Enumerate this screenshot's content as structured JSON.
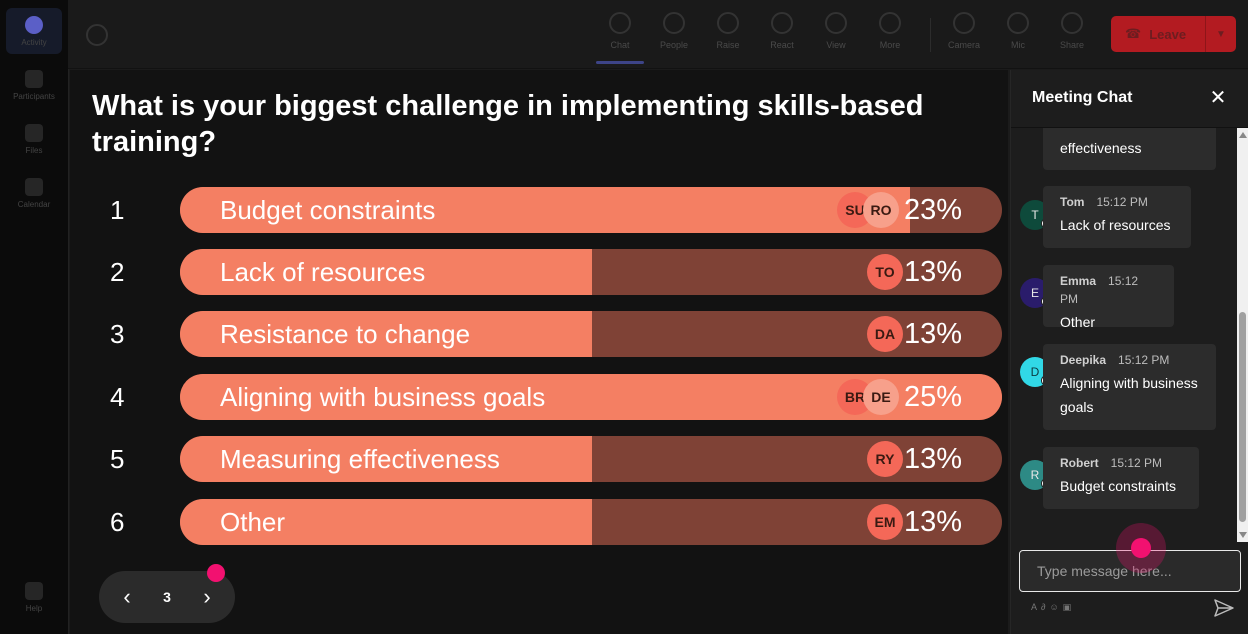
{
  "rail": {
    "items": [
      "Activity",
      "Participants",
      "Files",
      "Calendar",
      "Help"
    ]
  },
  "topbar": {
    "buttons": [
      "Chat",
      "People",
      "Raise",
      "React",
      "View",
      "More",
      "Camera",
      "Mic",
      "Share"
    ],
    "leave_label": "Leave"
  },
  "poll": {
    "question": "What is your biggest challenge in implementing skills-based training?",
    "options": [
      {
        "num": "1",
        "label": "Budget constraints",
        "percent": "23%",
        "fill_pct": 23,
        "avatars": [
          "SU",
          "RO"
        ]
      },
      {
        "num": "2",
        "label": "Lack of resources",
        "percent": "13%",
        "fill_pct": 13,
        "avatars": [
          "TO"
        ]
      },
      {
        "num": "3",
        "label": "Resistance to change",
        "percent": "13%",
        "fill_pct": 13,
        "avatars": [
          "DA"
        ]
      },
      {
        "num": "4",
        "label": "Aligning with business goals",
        "percent": "25%",
        "fill_pct": 25,
        "avatars": [
          "BR",
          "DE"
        ]
      },
      {
        "num": "5",
        "label": "Measuring effectiveness",
        "percent": "13%",
        "fill_pct": 13,
        "avatars": [
          "RY"
        ]
      },
      {
        "num": "6",
        "label": "Other",
        "percent": "13%",
        "fill_pct": 13,
        "avatars": [
          "EM"
        ]
      }
    ]
  },
  "pager": {
    "page": "3",
    "prev_glyph": "‹",
    "next_glyph": "›"
  },
  "chat": {
    "title": "Meeting Chat",
    "close_glyph": "✕",
    "partial_message": "effectiveness",
    "messages": [
      {
        "initial": "T",
        "name": "Tom",
        "time": "15:12 PM",
        "text": "Lack of resources",
        "color": "#0e4a3b"
      },
      {
        "initial": "E",
        "name": "Emma",
        "time": "15:12 PM",
        "text": "Other",
        "color": "#2a1c6b"
      },
      {
        "initial": "D",
        "name": "Deepika",
        "time": "15:12 PM",
        "text": "Aligning with business goals",
        "color": "#31d8e6"
      },
      {
        "initial": "R",
        "name": "Robert",
        "time": "15:12 PM",
        "text": "Budget constraints",
        "color": "#2d8a85"
      }
    ],
    "input_placeholder": "Type message here...",
    "tool_icons": [
      "format-icon",
      "attach-icon",
      "emoji-icon",
      "gif-icon"
    ]
  }
}
